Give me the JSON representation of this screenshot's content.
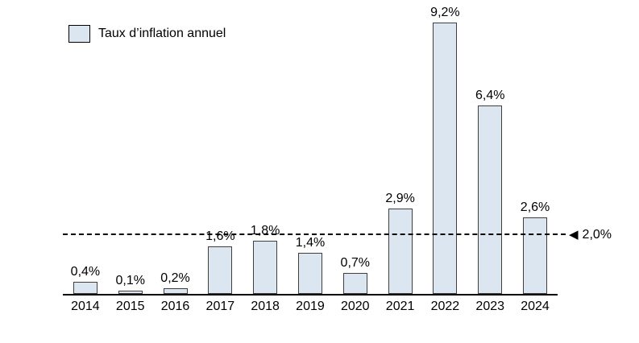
{
  "chart_data": {
    "type": "bar",
    "title": "",
    "legend": "Taux d’inflation annuel",
    "legend_position": "top-left",
    "categories": [
      "2014",
      "2015",
      "2016",
      "2017",
      "2018",
      "2019",
      "2020",
      "2021",
      "2022",
      "2023",
      "2024"
    ],
    "values": [
      0.4,
      0.1,
      0.2,
      1.6,
      1.8,
      1.4,
      0.7,
      2.9,
      9.2,
      6.4,
      2.6
    ],
    "value_labels": [
      "0,4%",
      "0,1%",
      "0,2%",
      "1,6%",
      "1,8%",
      "1,4%",
      "0,7%",
      "2,9%",
      "9,2%",
      "6,4%",
      "2,6%"
    ],
    "xlabel": "",
    "ylabel": "",
    "ylim": [
      0,
      9.2
    ],
    "grid": false,
    "target_line": {
      "value": 2.0,
      "label": "2,0%",
      "style": "dashed",
      "arrow_icon": "◀"
    },
    "colors": {
      "bar_fill": "#dce6f1",
      "bar_border": "#3f3f3f",
      "axis": "#000000",
      "text": "#000000"
    }
  }
}
